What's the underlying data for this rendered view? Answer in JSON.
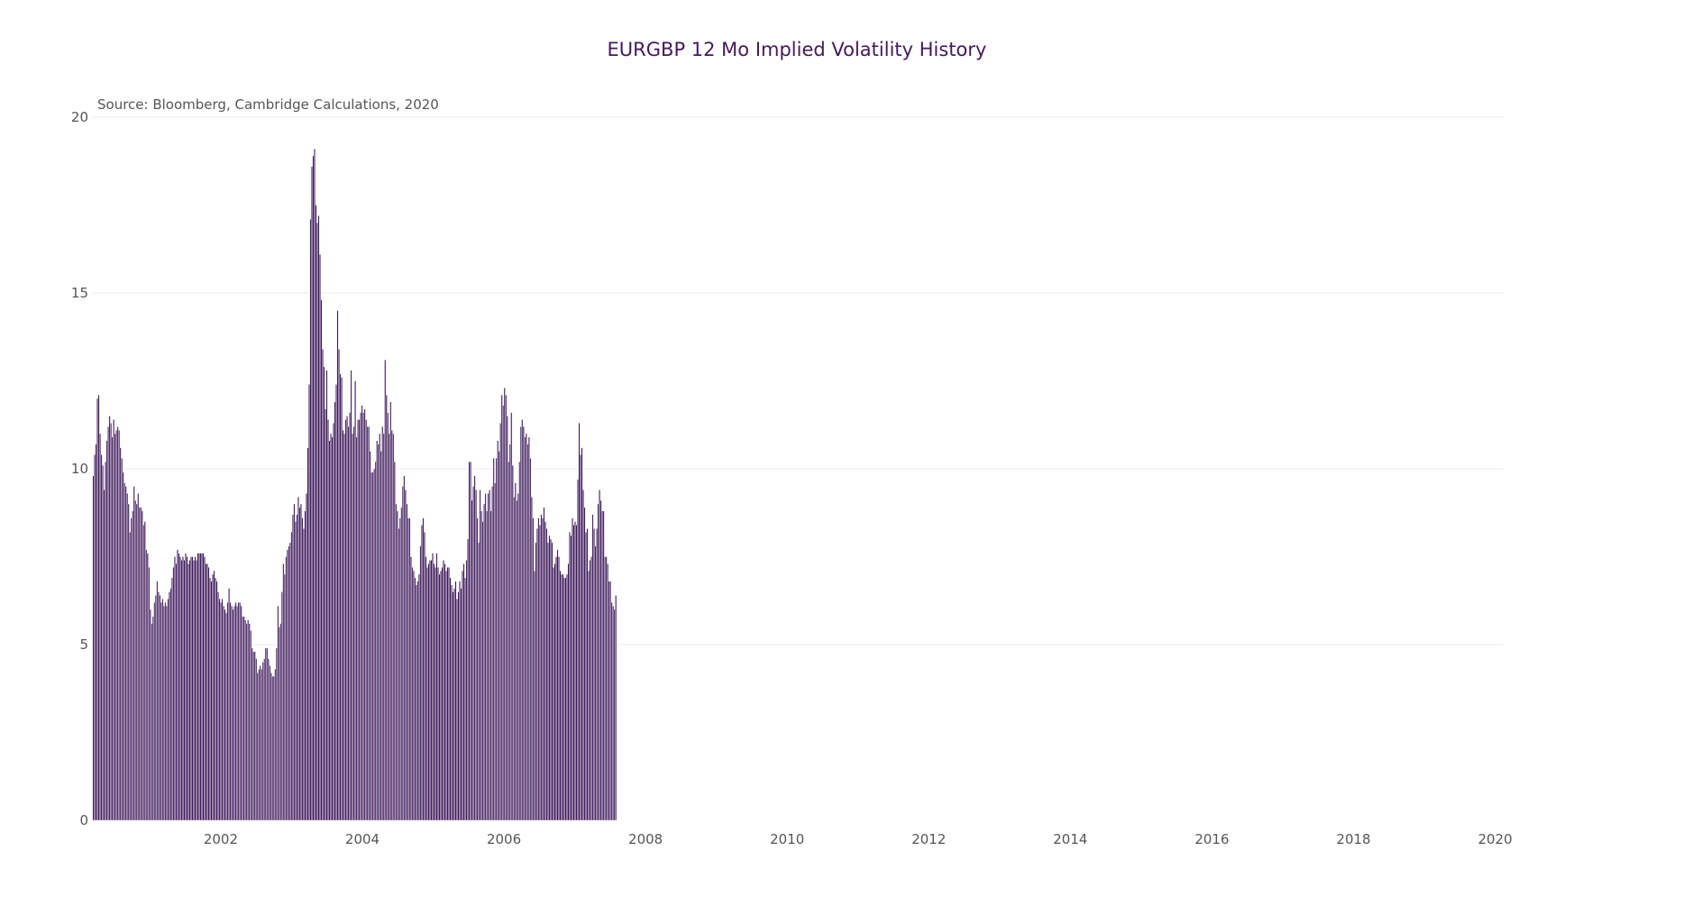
{
  "chart_data": {
    "type": "bar",
    "title": "EURGBP 12 Mo Implied Volatility History",
    "source_note": "Source: Bloomberg, Cambridge Calculations, 2020",
    "xlabel": "",
    "ylabel": "",
    "ylim": [
      0,
      20
    ],
    "y_ticks": [
      0,
      5,
      10,
      15,
      20
    ],
    "xlim": [
      2000.18,
      2020.12
    ],
    "x_ticks": [
      2002,
      2004,
      2006,
      2008,
      2010,
      2012,
      2014,
      2016,
      2018,
      2020
    ],
    "x_tick_labels": [
      "2002",
      "2004",
      "2006",
      "2008",
      "2010",
      "2012",
      "2014",
      "2016",
      "2018",
      "2020"
    ],
    "grid": "horizontal",
    "legend": "none",
    "bar_color": "#3f1a5c",
    "title_color": "#46185a",
    "series": [
      {
        "frequency": "weekly",
        "x_start": 2000.2,
        "x_step": 0.01917,
        "values": [
          9.8,
          10.4,
          10.7,
          12.0,
          12.1,
          11.0,
          10.4,
          10.1,
          9.4,
          10.2,
          10.8,
          11.2,
          11.5,
          11.3,
          10.9,
          11.4,
          11.0,
          11.1,
          11.2,
          11.1,
          10.6,
          10.3,
          9.9,
          9.6,
          9.5,
          9.3,
          9.0,
          8.2,
          8.6,
          8.8,
          9.5,
          9.1,
          9.0,
          9.3,
          8.9,
          8.9,
          8.8,
          8.4,
          8.5,
          7.7,
          7.6,
          7.2,
          6.0,
          5.6,
          5.8,
          6.2,
          6.4,
          6.8,
          6.5,
          6.4,
          6.2,
          6.3,
          6.1,
          6.2,
          6.1,
          6.3,
          6.5,
          6.6,
          6.9,
          7.2,
          7.5,
          7.3,
          7.7,
          7.6,
          7.5,
          7.4,
          7.5,
          7.4,
          7.6,
          7.5,
          7.3,
          7.4,
          7.5,
          7.5,
          7.4,
          7.5,
          7.4,
          7.6,
          7.6,
          7.6,
          7.6,
          7.6,
          7.5,
          7.3,
          7.3,
          7.2,
          6.9,
          6.8,
          7.0,
          7.1,
          6.9,
          6.8,
          6.5,
          6.3,
          6.2,
          6.3,
          6.1,
          6.0,
          5.9,
          6.2,
          6.6,
          6.2,
          6.1,
          6.0,
          6.1,
          6.2,
          6.1,
          6.2,
          6.2,
          6.1,
          5.8,
          5.8,
          5.7,
          5.6,
          5.7,
          5.6,
          5.4,
          4.9,
          4.8,
          4.8,
          4.6,
          4.2,
          4.3,
          4.4,
          4.3,
          4.5,
          4.6,
          4.9,
          4.9,
          4.6,
          4.4,
          4.2,
          4.1,
          4.1,
          4.3,
          4.9,
          6.1,
          5.5,
          5.6,
          6.5,
          7.3,
          7.0,
          7.5,
          7.7,
          7.8,
          7.9,
          8.2,
          8.7,
          9.0,
          8.5,
          8.7,
          9.2,
          8.9,
          9.0,
          8.6,
          8.3,
          8.8,
          9.3,
          10.6,
          12.4,
          17.1,
          18.6,
          18.9,
          19.1,
          17.5,
          17.0,
          17.2,
          16.1,
          14.8,
          13.4,
          12.9,
          11.7,
          12.8,
          11.4,
          10.8,
          11.0,
          10.9,
          11.3,
          11.9,
          12.4,
          14.5,
          13.4,
          12.7,
          12.6,
          11.1,
          11.0,
          11.4,
          11.5,
          11.2,
          11.6,
          12.8,
          11.0,
          11.2,
          12.5,
          10.9,
          11.4,
          11.4,
          11.6,
          11.8,
          11.6,
          11.7,
          11.4,
          11.2,
          11.2,
          10.5,
          9.9,
          9.9,
          10.0,
          10.2,
          10.8,
          10.7,
          11.0,
          10.5,
          11.2,
          11.0,
          13.1,
          12.1,
          11.6,
          11.0,
          11.9,
          11.1,
          11.0,
          10.2,
          9.0,
          8.8,
          8.3,
          8.6,
          8.9,
          9.5,
          9.8,
          9.4,
          9.0,
          8.6,
          8.6,
          7.5,
          7.2,
          7.1,
          6.9,
          6.7,
          6.8,
          7.0,
          7.8,
          8.4,
          8.6,
          8.2,
          7.5,
          7.2,
          7.3,
          7.4,
          7.4,
          7.6,
          7.3,
          7.2,
          7.6,
          7.2,
          7.0,
          7.1,
          7.2,
          7.4,
          7.3,
          7.1,
          7.2,
          7.2,
          6.9,
          6.7,
          6.5,
          6.6,
          6.8,
          6.3,
          6.5,
          6.8,
          6.6,
          7.1,
          7.3,
          6.9,
          7.4,
          8.0,
          10.2,
          10.2,
          9.1,
          9.5,
          9.8,
          9.4,
          8.6,
          7.9,
          9.4,
          8.8,
          8.5,
          9.0,
          9.3,
          8.8,
          9.3,
          9.4,
          8.8,
          9.5,
          10.3,
          9.6,
          10.3,
          10.8,
          10.5,
          11.3,
          12.1,
          11.8,
          12.3,
          12.1,
          11.5,
          10.2,
          10.7,
          11.6,
          10.1,
          9.2,
          9.6,
          9.1,
          9.3,
          10.2,
          11.2,
          11.4,
          11.2,
          10.9,
          11.0,
          10.7,
          10.9,
          10.3,
          9.2,
          8.6,
          7.1,
          7.9,
          8.3,
          8.6,
          8.4,
          8.7,
          8.6,
          8.9,
          8.5,
          8.3,
          7.9,
          8.1,
          8.0,
          7.9,
          7.2,
          7.3,
          7.5,
          7.7,
          7.5,
          7.1,
          7.0,
          7.0,
          6.9,
          6.9,
          7.0,
          7.3,
          8.2,
          8.1,
          8.6,
          8.4,
          8.5,
          8.4,
          9.7,
          11.3,
          10.4,
          10.6,
          9.4,
          8.9,
          8.2,
          8.3,
          7.1,
          7.4,
          7.5,
          8.7,
          8.3,
          7.8,
          8.3,
          9.0,
          9.4,
          9.1,
          8.8,
          8.8,
          7.5,
          7.5,
          7.3,
          6.8,
          6.8,
          6.2,
          6.1,
          6.0,
          6.4
        ]
      }
    ]
  }
}
